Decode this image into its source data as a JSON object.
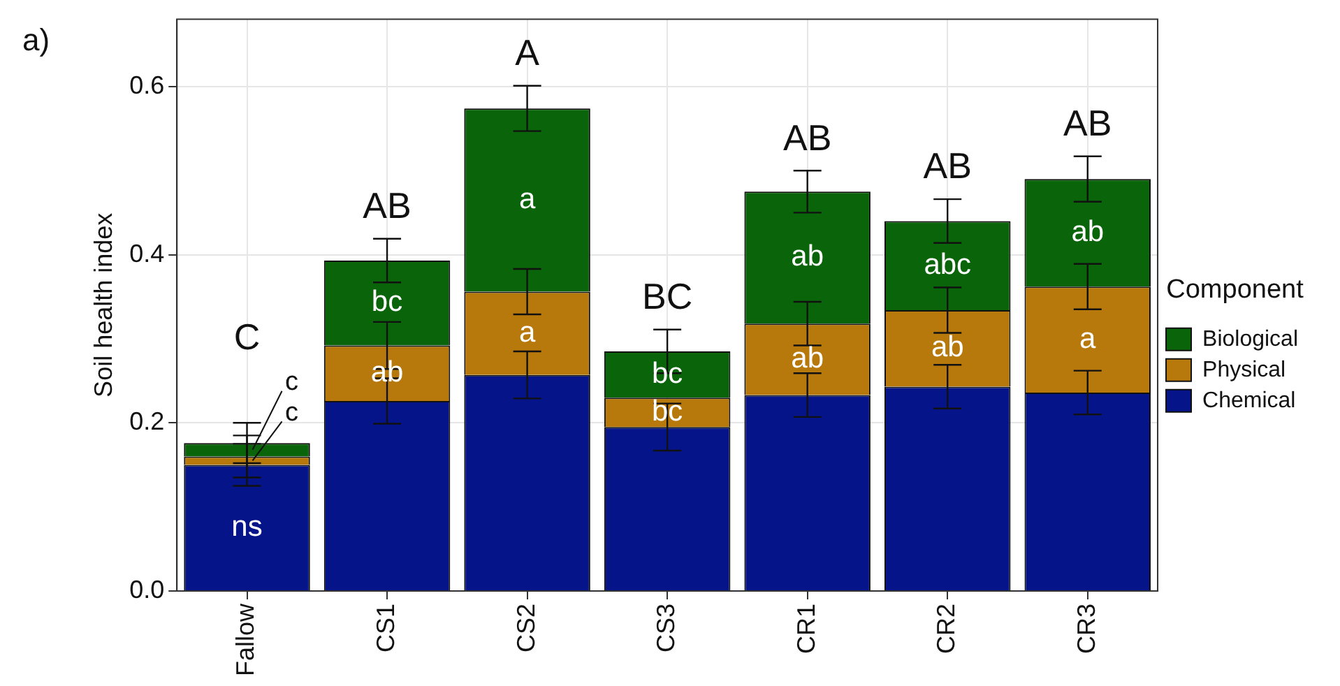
{
  "chart_data": {
    "type": "bar",
    "stacked": true,
    "ylabel": "Soil health index",
    "legend_title": "Component",
    "legend": "right",
    "grid": true,
    "categories": [
      "Fallow",
      "CS1",
      "CS2",
      "CS3",
      "CR1",
      "CR2",
      "CR3"
    ],
    "ylim": [
      0,
      0.68
    ],
    "yticks": [
      {
        "value": 0,
        "label": "0.0"
      },
      {
        "value": 0.2,
        "label": "0.2"
      },
      {
        "value": 0.4,
        "label": "0.4"
      },
      {
        "value": 0.6,
        "label": "0.6"
      }
    ],
    "series": [
      {
        "name": "Chemical",
        "color": "#06148a",
        "values": [
          0.15,
          0.226,
          0.257,
          0.195,
          0.233,
          0.243,
          0.236
        ],
        "errors": [
          0.025,
          0.027,
          0.028,
          0.028,
          0.026,
          0.026,
          0.026
        ],
        "value_labels": [
          "ns",
          null,
          null,
          null,
          null,
          null,
          null
        ]
      },
      {
        "name": "Physical",
        "color": "#b8790c",
        "values": [
          0.01,
          0.066,
          0.099,
          0.035,
          0.085,
          0.091,
          0.126
        ],
        "errors": [
          0.025,
          0.028,
          0.027,
          null,
          0.026,
          0.027,
          0.027
        ],
        "value_labels": [
          "c",
          "ab",
          "a",
          "bc",
          "ab",
          "ab",
          "a"
        ]
      },
      {
        "name": "Biological",
        "color": "#0a640a",
        "values": [
          0.016,
          0.101,
          0.218,
          0.055,
          0.157,
          0.106,
          0.128
        ],
        "errors": [
          0.024,
          0.026,
          0.027,
          0.026,
          0.025,
          0.026,
          0.027
        ],
        "value_labels": [
          "c",
          "bc",
          "a",
          "bc",
          "ab",
          "abc",
          "ab"
        ]
      }
    ],
    "totals": [
      "C",
      "AB",
      "A",
      "BC",
      "AB",
      "AB",
      "AB"
    ],
    "annotations": [
      "a)"
    ]
  }
}
